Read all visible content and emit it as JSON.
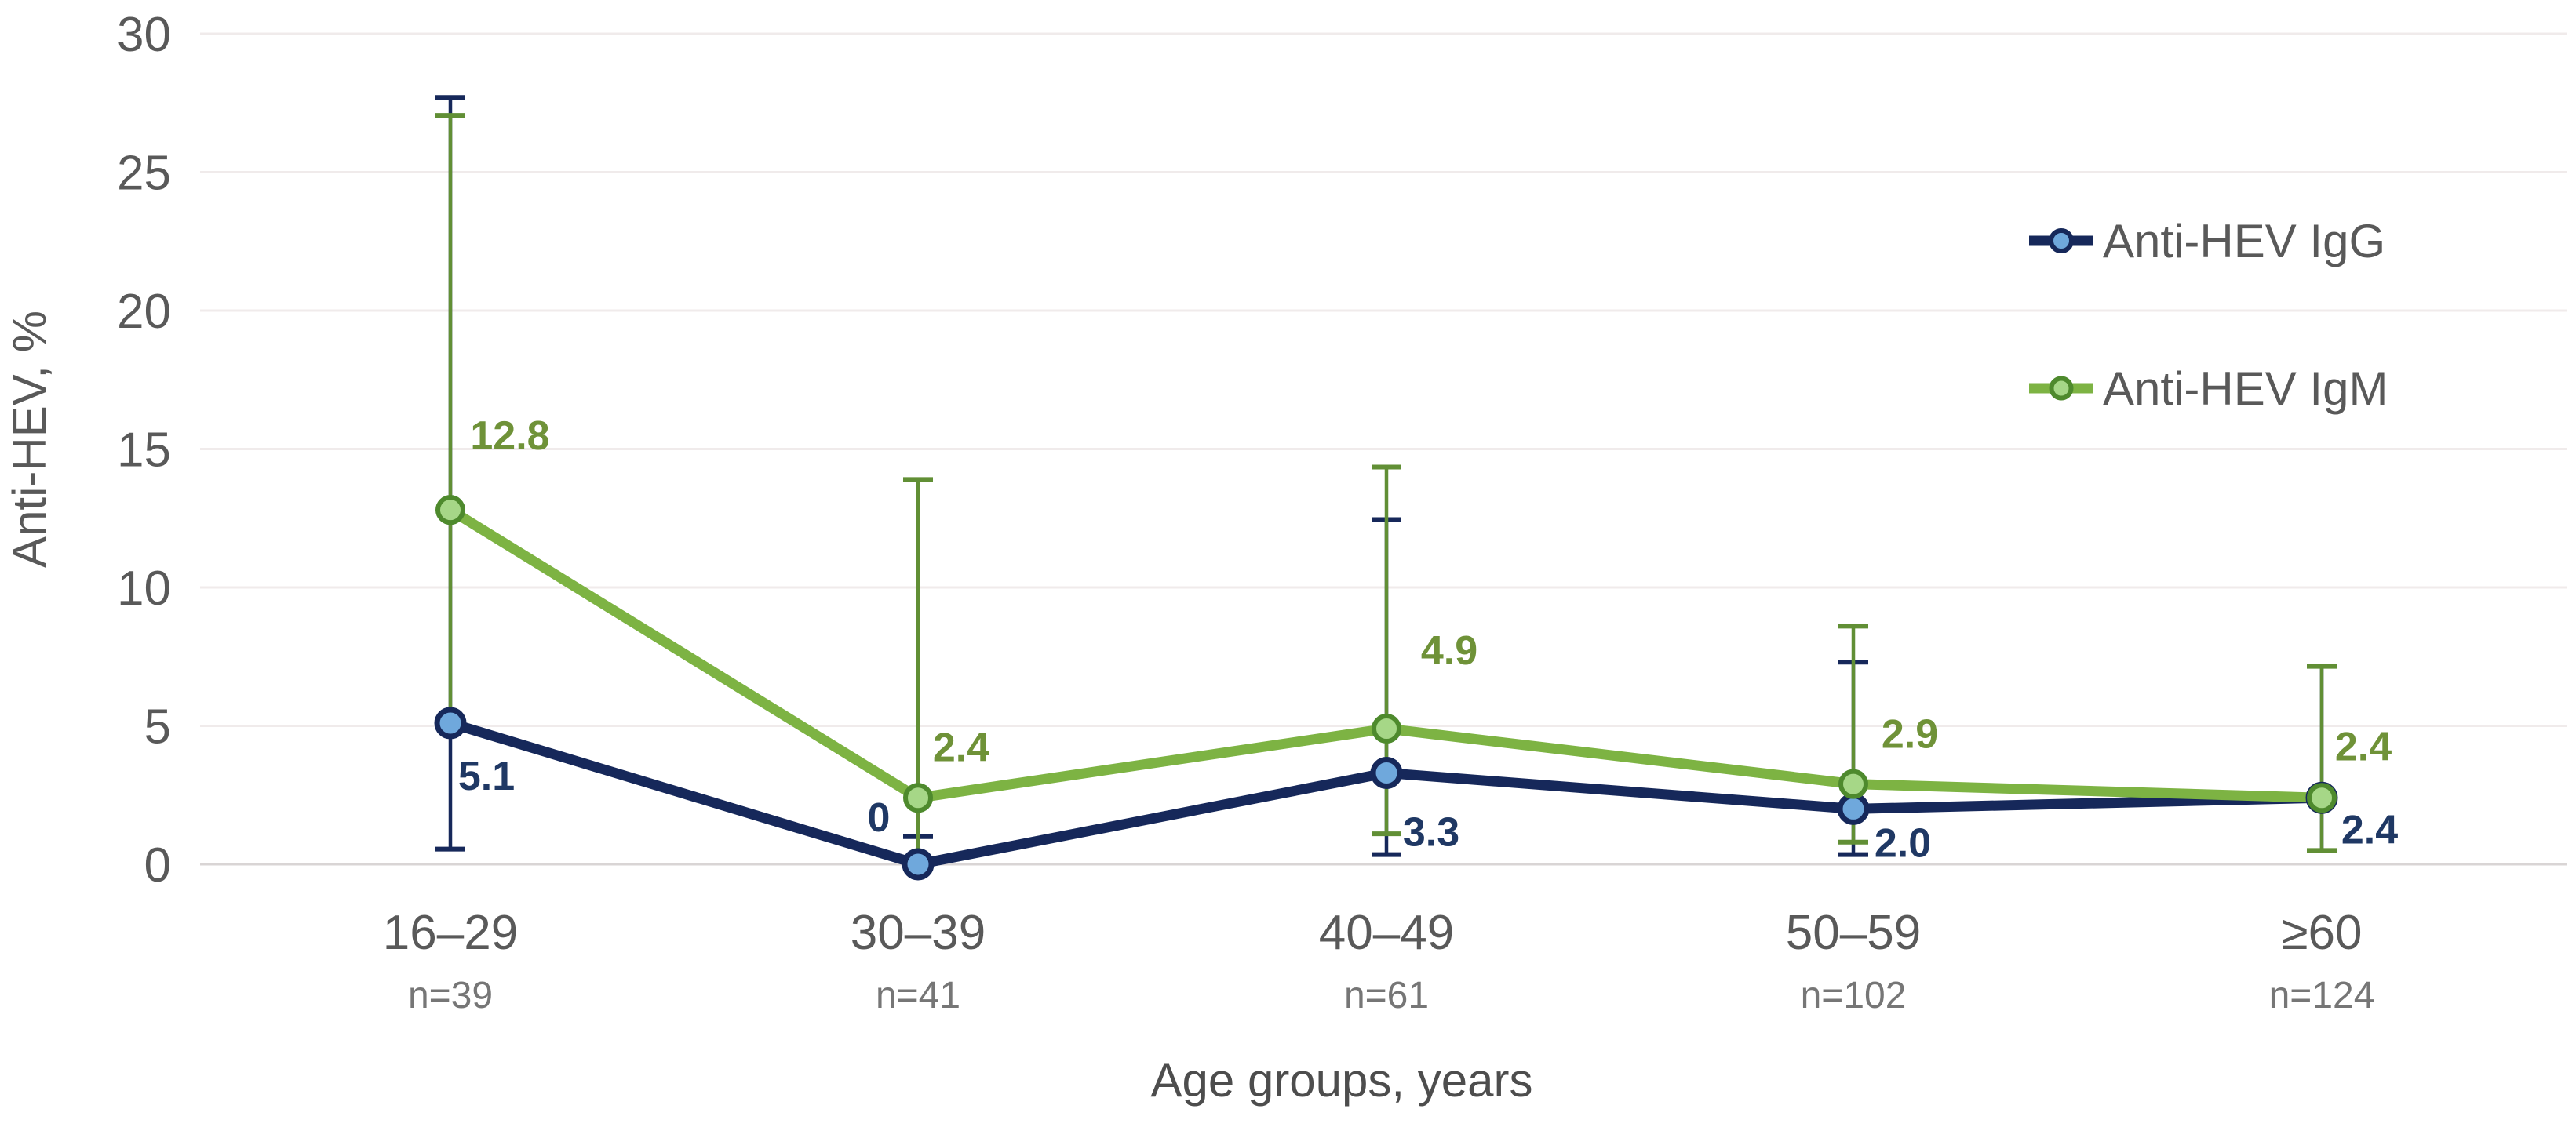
{
  "chart_data": {
    "type": "line",
    "title": "",
    "xlabel": "Age groups, years",
    "ylabel": "Anti-HEV, %",
    "ylim": [
      0,
      30
    ],
    "yticks": [
      "0",
      "5",
      "10",
      "15",
      "20",
      "25",
      "30"
    ],
    "grid": true,
    "legend_position": "right-inside",
    "categories": [
      "16–29",
      "30–39",
      "40–49",
      "50–59",
      "≥60"
    ],
    "n_labels": [
      "n=39",
      "n=41",
      "n=61",
      "n=102",
      "n=124"
    ],
    "colors": {
      "gridline": "#F0EBEB",
      "axis_line": "#D9D5D5",
      "tick_text": "#595959",
      "n_text": "#767676",
      "axis_title_text": "#4D4D4D",
      "legend_text": "#595959"
    },
    "series": [
      {
        "name": "Anti-HEV IgG",
        "line_color": "#16285A",
        "stem_color": "#16285A",
        "marker_ring_color": "#16285A",
        "marker_fill": "#6FA8DC",
        "label_color": "#1F3864",
        "values": [
          5.1,
          0,
          3.3,
          2.0,
          2.4
        ],
        "labels": [
          "5.1",
          "0",
          "3.3",
          "2.0",
          "2.4"
        ],
        "error_lo": [
          0.55,
          0,
          0.35,
          0.35,
          0.5
        ],
        "error_hi": [
          27.7,
          1.0,
          12.45,
          7.3,
          7.15
        ],
        "cap_lo": [
          true,
          false,
          true,
          true,
          false
        ],
        "cap_hi": [
          true,
          true,
          true,
          true,
          false
        ]
      },
      {
        "name": "Anti-HEV IgM",
        "line_color": "#7DB343",
        "stem_color": "#618F35",
        "marker_ring_color": "#4E8A2D",
        "marker_fill": "#A6D787",
        "label_color": "#6F9238",
        "values": [
          12.8,
          2.4,
          4.9,
          2.9,
          2.4
        ],
        "labels": [
          "12.8",
          "2.4",
          "4.9",
          "2.9",
          "2.4"
        ],
        "error_lo": [
          5.3,
          0.25,
          1.1,
          0.8,
          0.5
        ],
        "error_hi": [
          27.05,
          13.9,
          14.35,
          8.6,
          7.15
        ],
        "cap_lo": [
          false,
          false,
          true,
          true,
          true
        ],
        "cap_hi": [
          true,
          true,
          true,
          true,
          true
        ]
      }
    ]
  }
}
